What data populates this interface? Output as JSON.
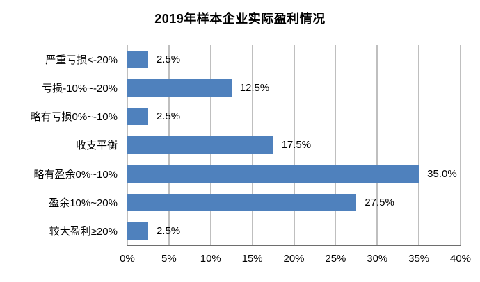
{
  "chart_data": {
    "type": "bar",
    "orientation": "horizontal",
    "title": "2019年样本企业实际盈利情况",
    "categories": [
      "严重亏损<-20%",
      "亏损-10%~-20%",
      "略有亏损0%~-10%",
      "收支平衡",
      "略有盈余0%~10%",
      "盈余10%~20%",
      "较大盈利≥20%"
    ],
    "values": [
      2.5,
      12.5,
      2.5,
      17.5,
      35.0,
      27.5,
      2.5
    ],
    "value_labels": [
      "2.5%",
      "12.5%",
      "2.5%",
      "17.5%",
      "35.0%",
      "27.5%",
      "2.5%"
    ],
    "x_ticks": [
      "0%",
      "5%",
      "10%",
      "15%",
      "20%",
      "25%",
      "30%",
      "35%",
      "40%"
    ],
    "xlim": [
      0,
      40
    ],
    "grid": true,
    "legend": false,
    "bar_color": "#4F81BD",
    "gridline_color": "#7F7F7F",
    "axis_line_color": "#6E6E6E",
    "text_color": "#000000",
    "background_color": "#FFFFFF"
  }
}
